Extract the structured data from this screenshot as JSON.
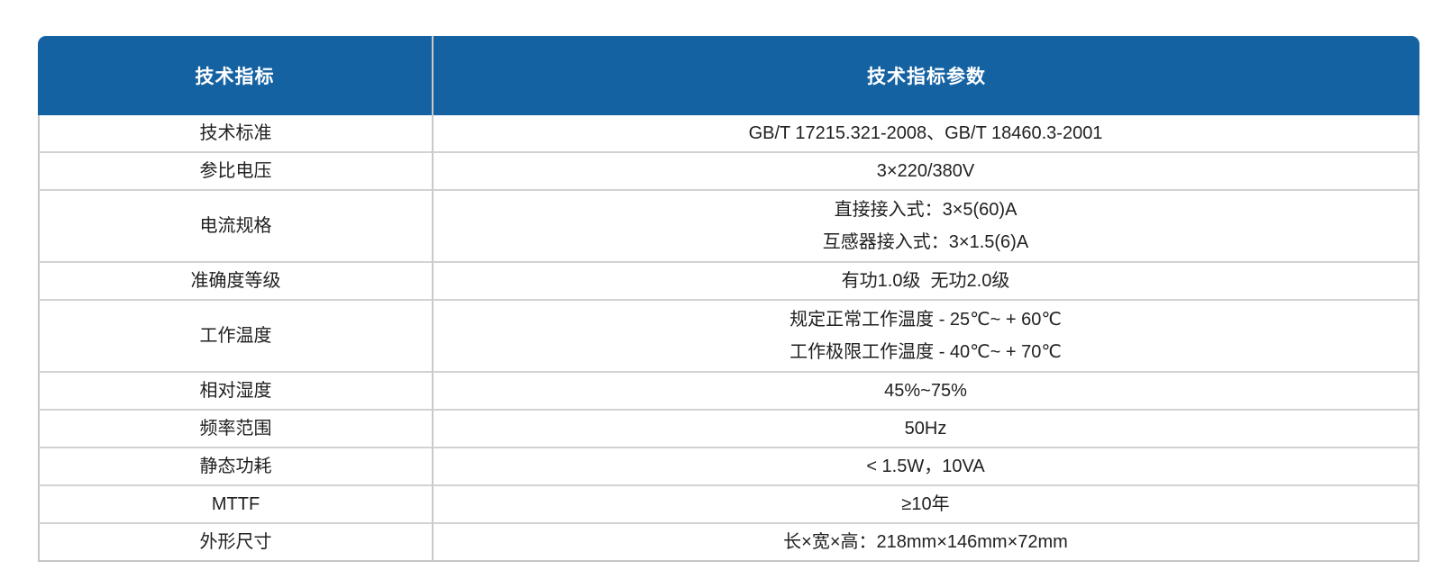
{
  "page": {
    "background_color": "#ffffff"
  },
  "table": {
    "header": {
      "bg_color": "#1562a3",
      "text_color": "#ffffff",
      "columns": [
        {
          "label": "技术指标"
        },
        {
          "label": "技术指标参数"
        }
      ]
    },
    "rows": [
      {
        "name": "技术标准",
        "value": "GB/T 17215.321-2008、GB/T 18460.3-2001"
      },
      {
        "name": "参比电压",
        "value": "3×220/380V"
      },
      {
        "name": "电流规格",
        "value": "直接接入式：3×5(60)A\n互感器接入式：3×1.5(6)A"
      },
      {
        "name": "准确度等级",
        "value": "有功1.0级  无功2.0级"
      },
      {
        "name": "工作温度",
        "value": "规定正常工作温度 - 25℃~ + 60℃\n工作极限工作温度 - 40℃~ + 70℃"
      },
      {
        "name": "相对湿度",
        "value": "45%~75%"
      },
      {
        "name": "频率范围",
        "value": "50Hz"
      },
      {
        "name": "静态功耗",
        "value": "< 1.5W，10VA"
      },
      {
        "name": "MTTF",
        "value": "≥10年"
      },
      {
        "name": "外形尺寸",
        "value": "长×宽×高：218mm×146mm×72mm"
      }
    ]
  }
}
